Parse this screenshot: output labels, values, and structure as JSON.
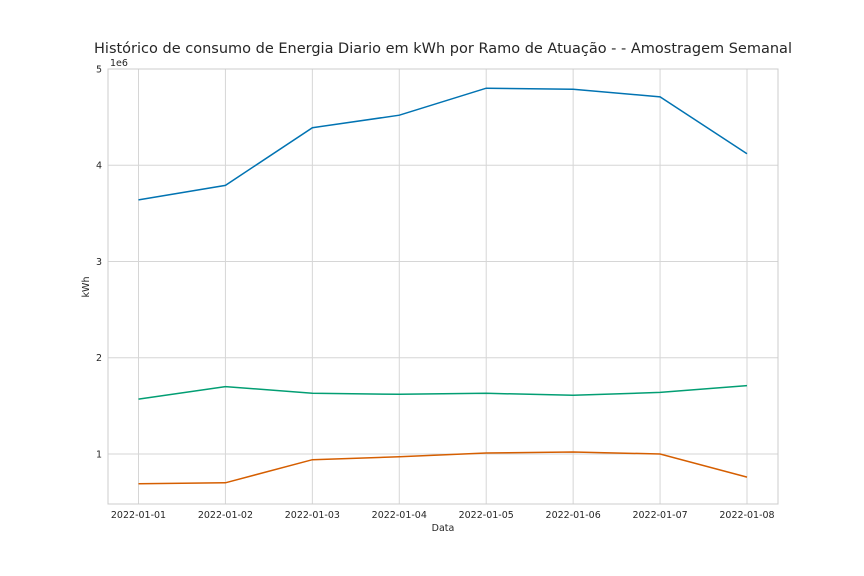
{
  "chart_data": {
    "type": "line",
    "title": "Histórico de consumo de Energia Diario em kWh por Ramo de Atuação -  - Amostragem Semanal",
    "xlabel": "Data",
    "ylabel": "kWh",
    "y_scale_label": "1e6",
    "x": [
      "2022-01-01",
      "2022-01-02",
      "2022-01-03",
      "2022-01-04",
      "2022-01-05",
      "2022-01-06",
      "2022-01-07",
      "2022-01-08"
    ],
    "yticks": [
      1,
      2,
      3,
      4,
      5
    ],
    "ylim": [
      0.48,
      5.0
    ],
    "grid": true,
    "legend": "none",
    "series": [
      {
        "color": "#0173b2",
        "values": [
          3.64,
          3.79,
          4.39,
          4.52,
          4.8,
          4.79,
          4.71,
          4.12
        ]
      },
      {
        "color": "#029e73",
        "values": [
          1.57,
          1.7,
          1.63,
          1.62,
          1.63,
          1.61,
          1.64,
          1.71
        ]
      },
      {
        "color": "#d55e00",
        "values": [
          0.69,
          0.7,
          0.94,
          0.97,
          1.01,
          1.02,
          1.0,
          0.76
        ]
      }
    ]
  }
}
